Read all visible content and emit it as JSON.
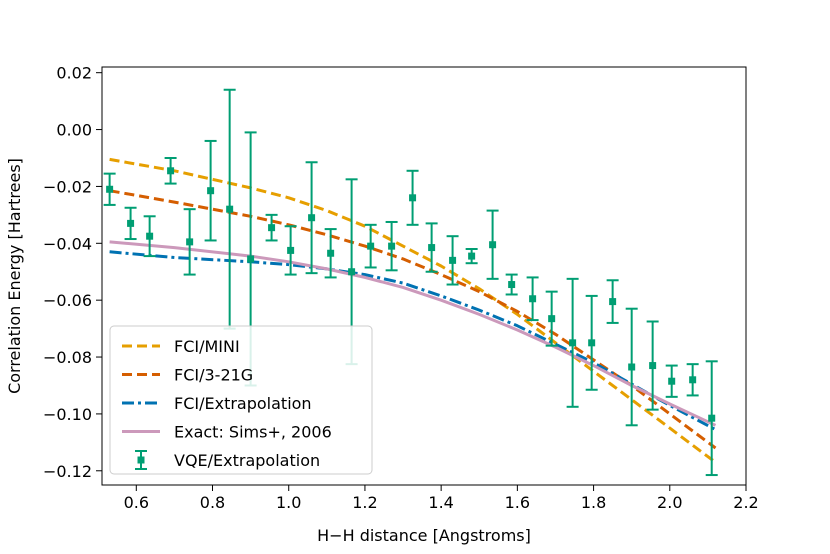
{
  "chart_data": {
    "type": "line",
    "xlabel": "H−H distance [Angstroms]",
    "ylabel": "Correlation Energy [Hartrees]",
    "xlim": [
      0.51,
      2.2
    ],
    "ylim": [
      -0.125,
      0.022
    ],
    "xticks": [
      0.6,
      0.8,
      1.0,
      1.2,
      1.4,
      1.6,
      1.8,
      2.0,
      2.2
    ],
    "xtick_labels": [
      "0.6",
      "0.8",
      "1.0",
      "1.2",
      "1.4",
      "1.6",
      "1.8",
      "2.0",
      "2.2"
    ],
    "yticks": [
      0.02,
      0.0,
      -0.02,
      -0.04,
      -0.06,
      -0.08,
      -0.1,
      -0.12
    ],
    "ytick_labels": [
      "0.02",
      "0.00",
      "−0.02",
      "−0.04",
      "−0.06",
      "−0.08",
      "−0.10",
      "−0.12"
    ],
    "grid": false,
    "legend_position": "lower-left",
    "series": [
      {
        "name": "FCI/MINI",
        "style": "dashed",
        "color": "#e69f00",
        "x": [
          0.53,
          0.7,
          0.9,
          1.0,
          1.1,
          1.2,
          1.3,
          1.4,
          1.5,
          1.6,
          1.7,
          1.8,
          1.9,
          2.0,
          2.12
        ],
        "y": [
          -0.0105,
          -0.0145,
          -0.0205,
          -0.024,
          -0.0285,
          -0.034,
          -0.041,
          -0.048,
          -0.056,
          -0.065,
          -0.075,
          -0.085,
          -0.095,
          -0.105,
          -0.117
        ]
      },
      {
        "name": "FCI/3-21G",
        "style": "dashed",
        "color": "#d55e00",
        "x": [
          0.53,
          0.7,
          0.9,
          1.0,
          1.1,
          1.2,
          1.3,
          1.4,
          1.5,
          1.6,
          1.7,
          1.8,
          1.9,
          2.0,
          2.12
        ],
        "y": [
          -0.0215,
          -0.0255,
          -0.0305,
          -0.0335,
          -0.037,
          -0.041,
          -0.0455,
          -0.051,
          -0.057,
          -0.064,
          -0.072,
          -0.081,
          -0.09,
          -0.1,
          -0.112
        ]
      },
      {
        "name": "FCI/Extrapolation",
        "style": "dashdot",
        "color": "#0072b2",
        "x": [
          0.53,
          0.7,
          0.9,
          1.0,
          1.1,
          1.2,
          1.3,
          1.4,
          1.5,
          1.6,
          1.7,
          1.8,
          1.9,
          2.0,
          2.12
        ],
        "y": [
          -0.043,
          -0.045,
          -0.0465,
          -0.0475,
          -0.049,
          -0.051,
          -0.054,
          -0.0585,
          -0.0635,
          -0.069,
          -0.0755,
          -0.082,
          -0.0895,
          -0.097,
          -0.1055
        ]
      },
      {
        "name": "Exact: Sims+, 2006",
        "style": "solid",
        "color": "#cc99bb",
        "x": [
          0.53,
          0.7,
          0.9,
          1.0,
          1.1,
          1.2,
          1.3,
          1.4,
          1.5,
          1.6,
          1.7,
          1.8,
          1.9,
          2.0,
          2.12
        ],
        "y": [
          -0.0395,
          -0.0415,
          -0.0445,
          -0.0465,
          -0.049,
          -0.052,
          -0.0555,
          -0.06,
          -0.065,
          -0.0705,
          -0.0765,
          -0.083,
          -0.09,
          -0.0965,
          -0.104
        ]
      },
      {
        "name": "VQE/Extrapolation",
        "style": "errorbar",
        "color": "#009e73",
        "x": [
          0.53,
          0.585,
          0.635,
          0.69,
          0.74,
          0.795,
          0.845,
          0.9,
          0.955,
          1.005,
          1.06,
          1.11,
          1.165,
          1.215,
          1.27,
          1.325,
          1.375,
          1.43,
          1.48,
          1.535,
          1.585,
          1.64,
          1.69,
          1.745,
          1.795,
          1.85,
          1.9,
          1.955,
          2.005,
          2.06,
          2.11
        ],
        "y": [
          -0.021,
          -0.033,
          -0.0375,
          -0.0145,
          -0.0395,
          -0.0215,
          -0.028,
          -0.0455,
          -0.0345,
          -0.0425,
          -0.031,
          -0.0435,
          -0.05,
          -0.041,
          -0.041,
          -0.024,
          -0.0415,
          -0.046,
          -0.0445,
          -0.0405,
          -0.0545,
          -0.0595,
          -0.0665,
          -0.075,
          -0.075,
          -0.0605,
          -0.0835,
          -0.083,
          -0.0885,
          -0.088,
          -0.1015
        ],
        "yerr": [
          0.0055,
          0.0055,
          0.007,
          0.0045,
          0.0115,
          0.0175,
          0.042,
          0.0445,
          0.0045,
          0.0085,
          0.0195,
          0.0085,
          0.0325,
          0.0075,
          0.0085,
          0.0095,
          0.0085,
          0.0085,
          0.0025,
          0.012,
          0.0035,
          0.0075,
          0.0095,
          0.0225,
          0.0165,
          0.0075,
          0.0205,
          0.0155,
          0.0055,
          0.0055,
          0.02
        ]
      }
    ]
  }
}
